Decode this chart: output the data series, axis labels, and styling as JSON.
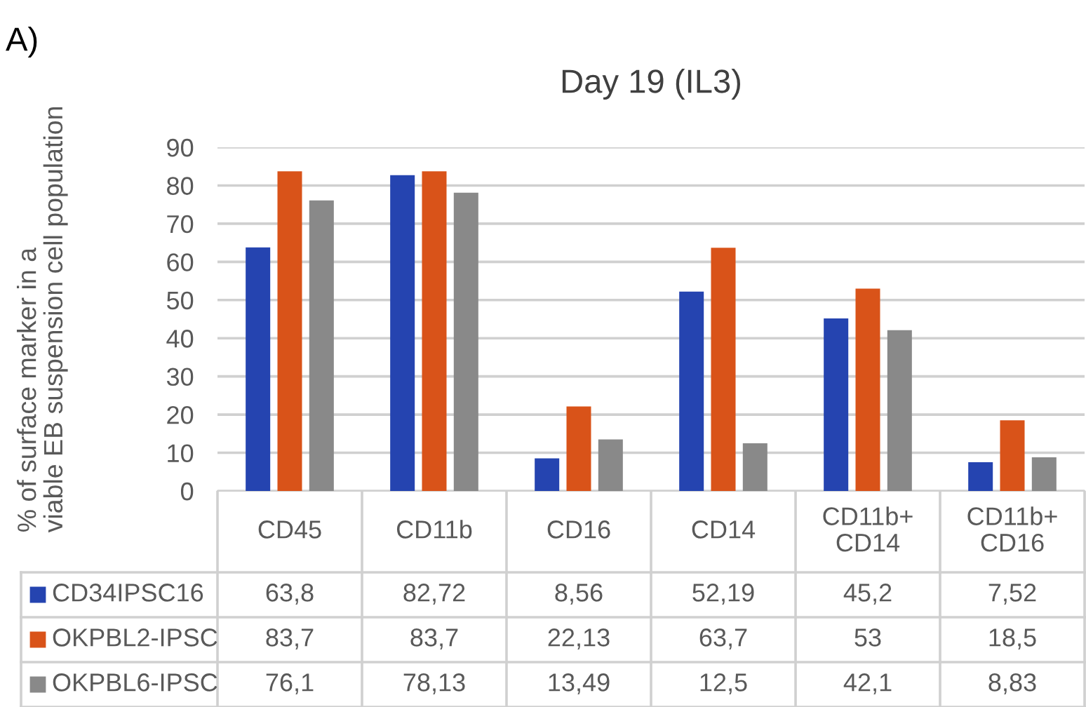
{
  "chart_data": {
    "type": "bar",
    "title": "Day 19 (IL3)",
    "ylabel": "% of surface marker in a\nviable EB suspension cell population",
    "annotations": [
      "A)"
    ],
    "categories": [
      "CD45",
      "CD11b",
      "CD16",
      "CD14",
      "CD11b+\nCD14",
      "CD11b+\nCD16"
    ],
    "series": [
      {
        "name": "CD34IPSC16",
        "color": "#2544b0",
        "values": [
          63.8,
          82.72,
          8.56,
          52.19,
          45.2,
          7.52
        ],
        "value_labels": [
          "63,8",
          "82,72",
          "8,56",
          "52,19",
          "45,2",
          "7,52"
        ]
      },
      {
        "name": "OKPBL2-IPSC",
        "color": "#d95319",
        "values": [
          83.7,
          83.7,
          22.13,
          63.7,
          53,
          18.5
        ],
        "value_labels": [
          "83,7",
          "83,7",
          "22,13",
          "63,7",
          "53",
          "18,5"
        ]
      },
      {
        "name": "OKPBL6-IPSC",
        "color": "#898989",
        "values": [
          76.1,
          78.13,
          13.49,
          12.5,
          42.1,
          8.83
        ],
        "value_labels": [
          "76,1",
          "78,13",
          "13,49",
          "12,5",
          "42,1",
          "8,83"
        ]
      }
    ],
    "ylim": [
      0,
      90
    ],
    "yticks": [
      0,
      10,
      20,
      30,
      40,
      50,
      60,
      70,
      80,
      90
    ],
    "grid": "y",
    "legend": "bottom"
  }
}
